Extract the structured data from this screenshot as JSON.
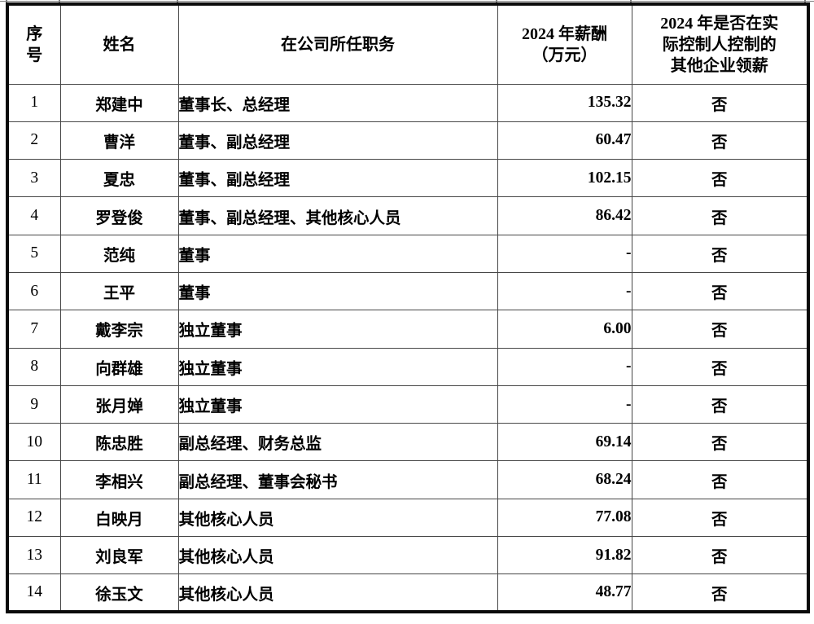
{
  "page": {
    "background_color": "#ffffff",
    "text_color": "#000000",
    "outer_border_color": "#0a0a0a",
    "grid_color": "#474747"
  },
  "table": {
    "columns": [
      {
        "key": "no",
        "label": "序\n号",
        "align": "center"
      },
      {
        "key": "name",
        "label": "姓名",
        "align": "center"
      },
      {
        "key": "position",
        "label": "在公司所任职务",
        "align": "left"
      },
      {
        "key": "salary",
        "label": "2024 年薪酬\n（万元）",
        "align": "right"
      },
      {
        "key": "other_pay",
        "label": "2024 年是否在实\n际控制人控制的\n其他企业领薪",
        "align": "center"
      }
    ],
    "rows": [
      {
        "no": "1",
        "name": "郑建中",
        "position": "董事长、总经理",
        "salary": "135.32",
        "other_pay": "否"
      },
      {
        "no": "2",
        "name": "曹洋",
        "position": "董事、副总经理",
        "salary": "60.47",
        "other_pay": "否"
      },
      {
        "no": "3",
        "name": "夏忠",
        "position": "董事、副总经理",
        "salary": "102.15",
        "other_pay": "否"
      },
      {
        "no": "4",
        "name": "罗登俊",
        "position": "董事、副总经理、其他核心人员",
        "salary": "86.42",
        "other_pay": "否"
      },
      {
        "no": "5",
        "name": "范纯",
        "position": "董事",
        "salary": "-",
        "other_pay": "否"
      },
      {
        "no": "6",
        "name": "王平",
        "position": "董事",
        "salary": "-",
        "other_pay": "否"
      },
      {
        "no": "7",
        "name": "戴李宗",
        "position": "独立董事",
        "salary": "6.00",
        "other_pay": "否"
      },
      {
        "no": "8",
        "name": "向群雄",
        "position": "独立董事",
        "salary": "-",
        "other_pay": "否"
      },
      {
        "no": "9",
        "name": "张月婵",
        "position": "独立董事",
        "salary": "-",
        "other_pay": "否"
      },
      {
        "no": "10",
        "name": "陈忠胜",
        "position": "副总经理、财务总监",
        "salary": "69.14",
        "other_pay": "否"
      },
      {
        "no": "11",
        "name": "李相兴",
        "position": "副总经理、董事会秘书",
        "salary": "68.24",
        "other_pay": "否"
      },
      {
        "no": "12",
        "name": "白映月",
        "position": "其他核心人员",
        "salary": "77.08",
        "other_pay": "否"
      },
      {
        "no": "13",
        "name": "刘良军",
        "position": "其他核心人员",
        "salary": "91.82",
        "other_pay": "否"
      },
      {
        "no": "14",
        "name": "徐玉文",
        "position": "其他核心人员",
        "salary": "48.77",
        "other_pay": "否"
      }
    ]
  }
}
